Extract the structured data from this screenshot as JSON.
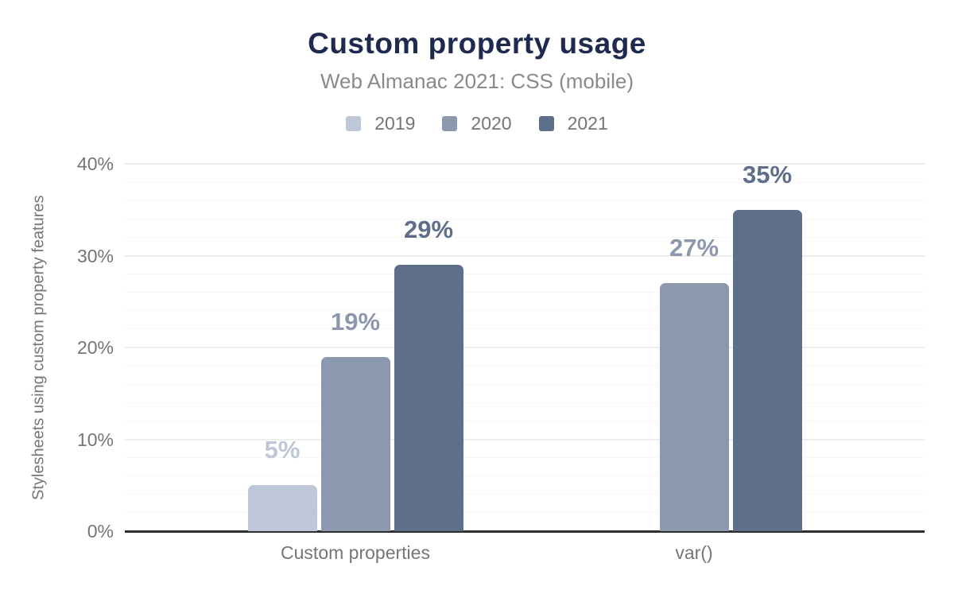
{
  "chart_data": {
    "type": "bar",
    "title": "Custom property usage",
    "subtitle": "Web Almanac 2021: CSS (mobile)",
    "ylabel": "Stylesheets using custom property features",
    "categories": [
      "Custom properties",
      "var()"
    ],
    "series": [
      {
        "name": "2019",
        "color": "#bdc7d7",
        "values": [
          5,
          null
        ]
      },
      {
        "name": "2020",
        "color": "#8b98ae",
        "values": [
          19,
          27
        ]
      },
      {
        "name": "2021",
        "color": "#5e6f8a",
        "values": [
          29,
          35
        ]
      }
    ],
    "value_labels": [
      [
        "5%",
        "19%",
        "29%"
      ],
      [
        null,
        "27%",
        "35%"
      ]
    ],
    "ytick_labels": [
      "0%",
      "10%",
      "20%",
      "30%",
      "40%"
    ],
    "ylim": [
      0,
      40
    ],
    "ytick_step": 10,
    "minor_grid_step": 2,
    "tick_suffix": "%",
    "grid": true,
    "legend_position": "top",
    "title_color": "#1e2b4f",
    "text_color": "#8a8a8a",
    "tick_text_color": "#757575",
    "axis_color": "#2e2e2e",
    "grid_major_color": "#ededed",
    "grid_minor_color": "#f7f7f7",
    "background_color": "#ffffff"
  }
}
